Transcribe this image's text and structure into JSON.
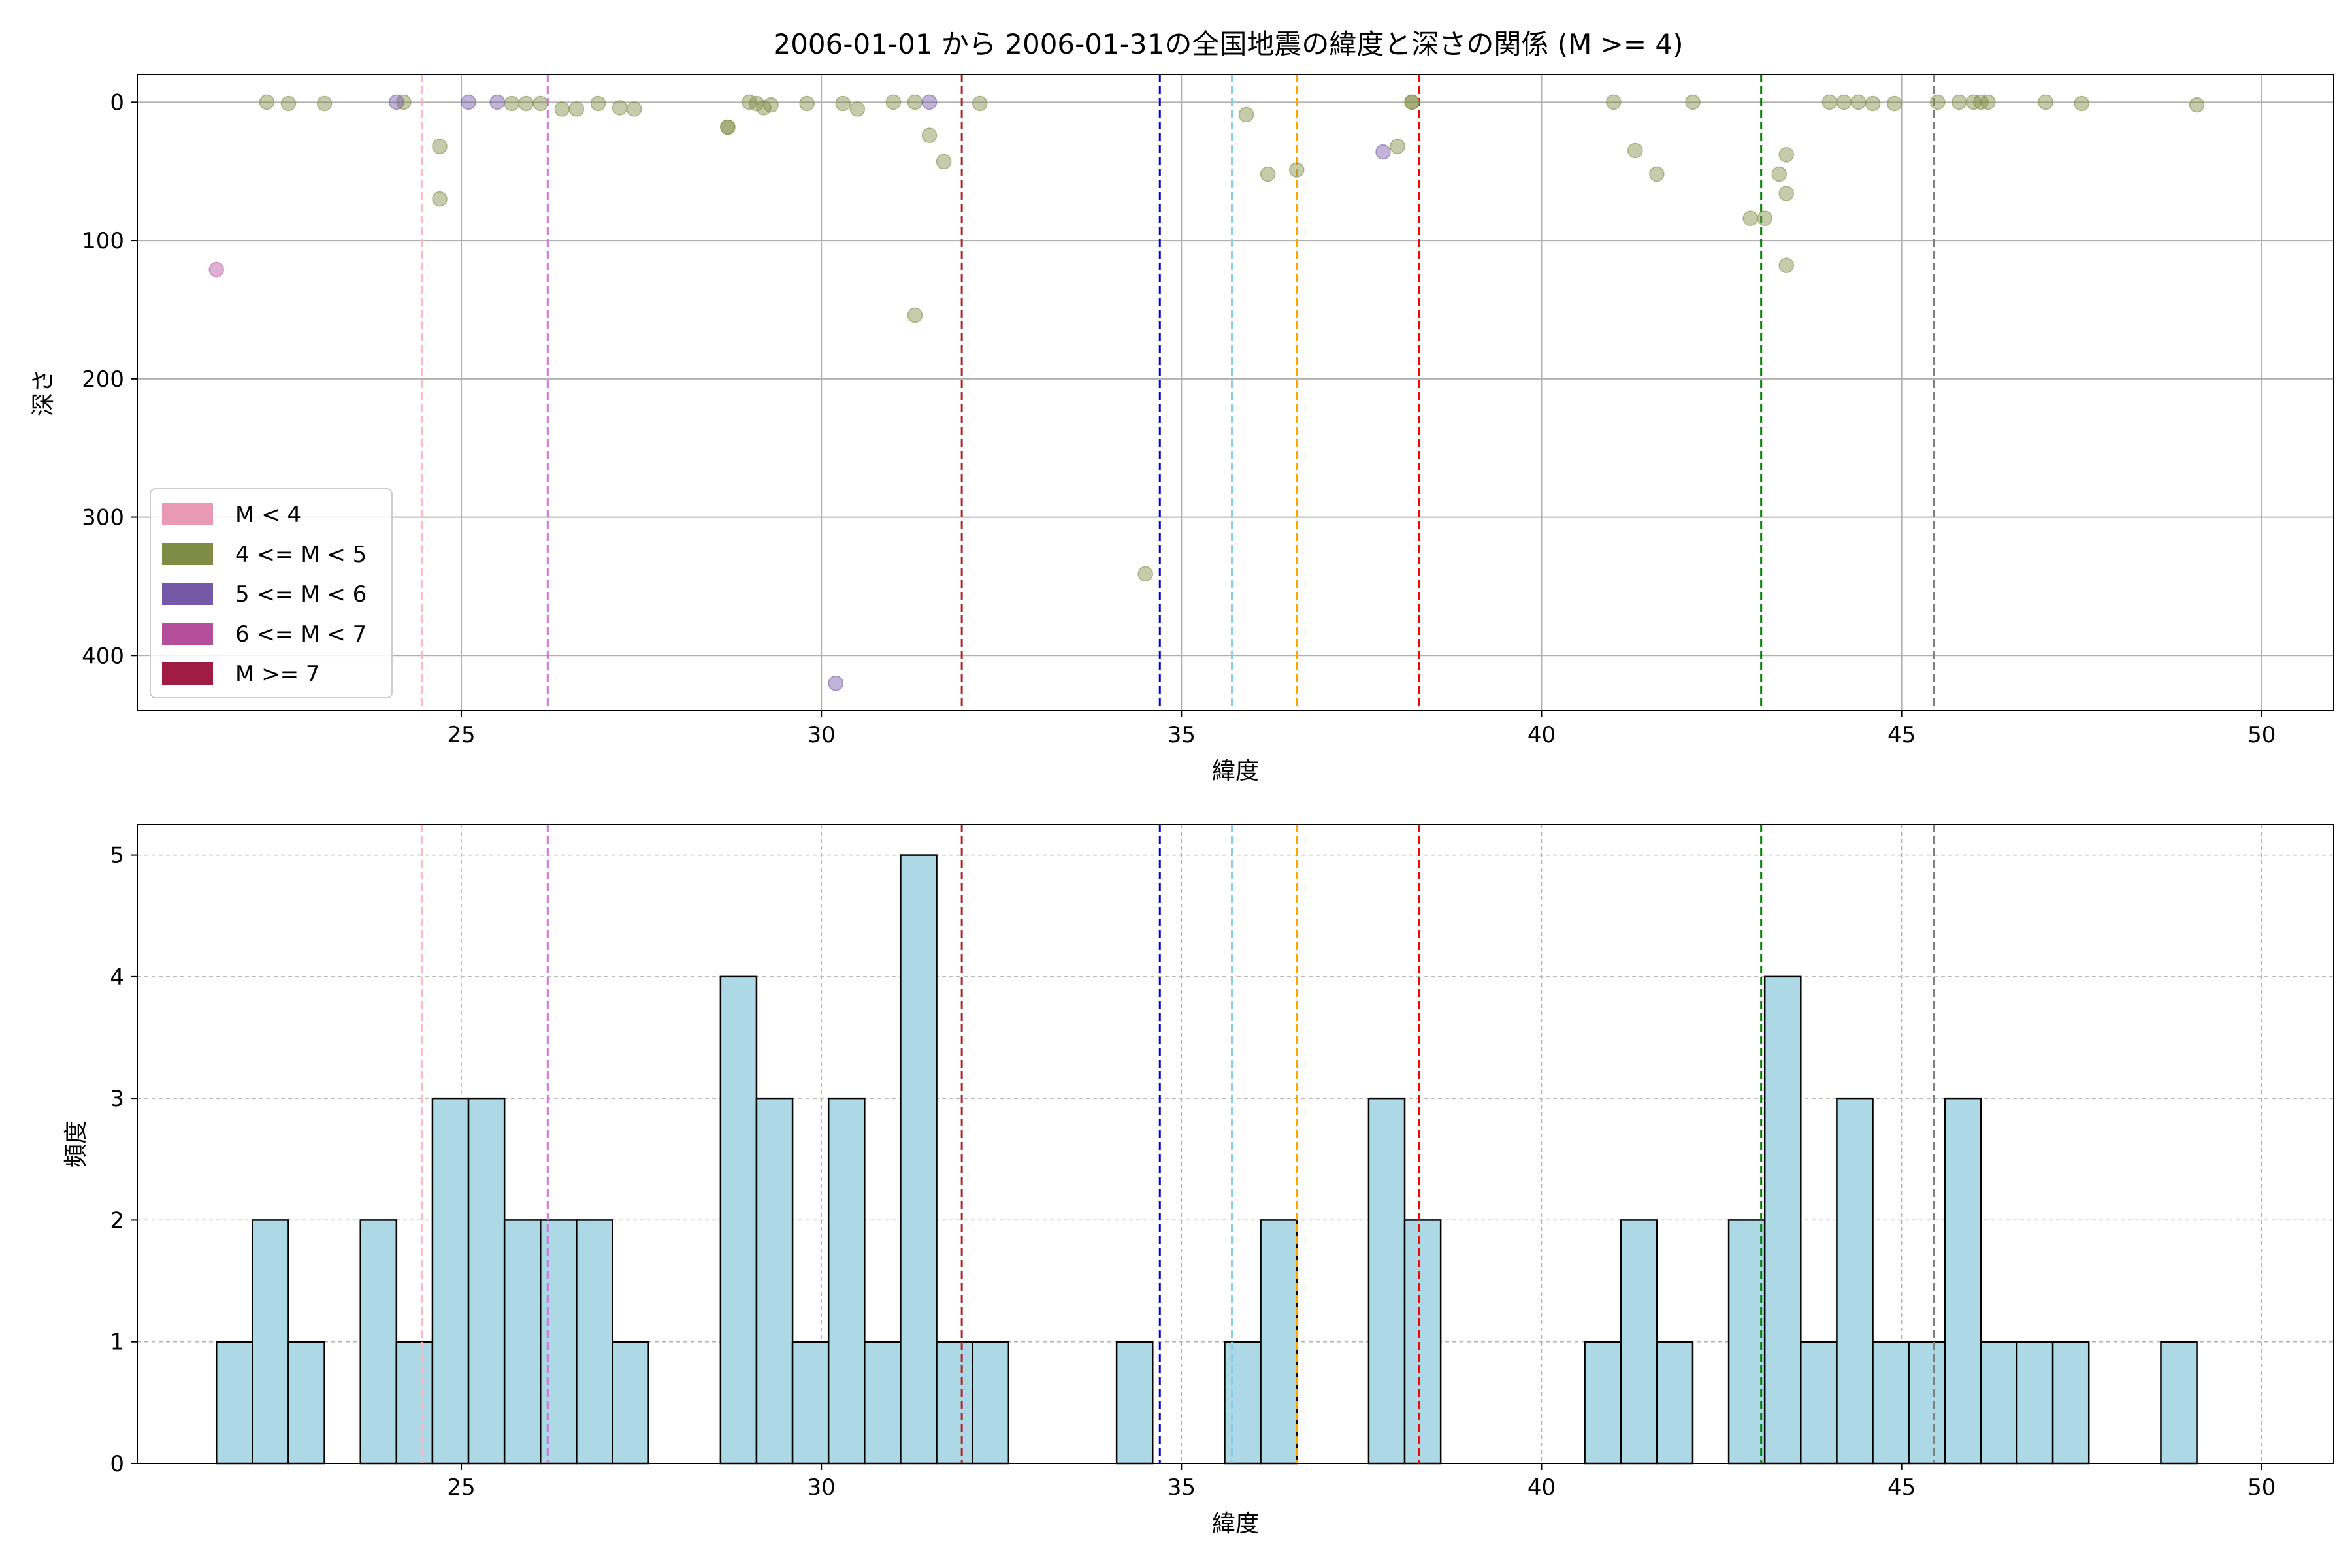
{
  "title": "2006-01-01 から 2006-01-31の全国地震の緯度と深さの関係 (M >= 4)",
  "colors": {
    "m_lt4": "#e89ab5",
    "m4_5": "#7f8c45",
    "m5_6": "#7559a6",
    "m6_7": "#b64f9b",
    "m_ge7": "#a01c44",
    "bar_fill": "#add8e6",
    "grid": "#b0b0b0"
  },
  "chart_data": [
    {
      "type": "scatter",
      "xlabel": "緯度",
      "ylabel": "深さ",
      "xlim": [
        20.5,
        51.0
      ],
      "ylim": [
        440,
        -20
      ],
      "y_inverted": true,
      "grid": true,
      "x_ticks": [
        "25",
        "30",
        "35",
        "40",
        "45",
        "50"
      ],
      "y_ticks": [
        "0",
        "100",
        "200",
        "300",
        "400"
      ],
      "legend": {
        "placement": "lower-left",
        "entries": [
          {
            "label": "M < 4",
            "color": "#e89ab5"
          },
          {
            "label": "4 <= M < 5",
            "color": "#7f8c45"
          },
          {
            "label": "5 <= M < 6",
            "color": "#7559a6"
          },
          {
            "label": "6 <= M < 7",
            "color": "#b64f9b"
          },
          {
            "label": "M >= 7",
            "color": "#a01c44"
          }
        ]
      },
      "vlines": [
        {
          "x": 24.45,
          "color": "#ffb6c1"
        },
        {
          "x": 26.2,
          "color": "#da70d6"
        },
        {
          "x": 31.95,
          "color": "#b22222"
        },
        {
          "x": 34.7,
          "color": "#0000cd"
        },
        {
          "x": 35.7,
          "color": "#87ceeb"
        },
        {
          "x": 36.6,
          "color": "#ffa500"
        },
        {
          "x": 38.3,
          "color": "#ff0000"
        },
        {
          "x": 43.05,
          "color": "#008000"
        },
        {
          "x": 45.45,
          "color": "#808080"
        }
      ],
      "series": [
        {
          "magnitude_class": "4 <= M < 5",
          "color": "#7f8c45",
          "points": [
            [
              22.3,
              0
            ],
            [
              22.6,
              1
            ],
            [
              23.1,
              1
            ],
            [
              24.2,
              0
            ],
            [
              24.7,
              32
            ],
            [
              24.7,
              70
            ],
            [
              25.7,
              1
            ],
            [
              25.9,
              1
            ],
            [
              26.1,
              1
            ],
            [
              26.4,
              5
            ],
            [
              26.6,
              5
            ],
            [
              26.9,
              1
            ],
            [
              27.2,
              4
            ],
            [
              27.4,
              5
            ],
            [
              28.7,
              18
            ],
            [
              28.7,
              18
            ],
            [
              29.0,
              0
            ],
            [
              29.1,
              1
            ],
            [
              29.2,
              4
            ],
            [
              29.3,
              2
            ],
            [
              29.8,
              1
            ],
            [
              30.3,
              1
            ],
            [
              30.5,
              5
            ],
            [
              31.0,
              0
            ],
            [
              31.3,
              0
            ],
            [
              31.3,
              154
            ],
            [
              31.5,
              24
            ],
            [
              31.7,
              43
            ],
            [
              32.2,
              1
            ],
            [
              34.5,
              341
            ],
            [
              35.9,
              9
            ],
            [
              36.2,
              52
            ],
            [
              36.6,
              49
            ],
            [
              38.0,
              32
            ],
            [
              38.2,
              0
            ],
            [
              38.2,
              0
            ],
            [
              41.0,
              0
            ],
            [
              41.3,
              35
            ],
            [
              41.6,
              52
            ],
            [
              42.1,
              0
            ],
            [
              42.9,
              84
            ],
            [
              43.1,
              84
            ],
            [
              43.3,
              52
            ],
            [
              43.4,
              38
            ],
            [
              43.4,
              66
            ],
            [
              43.4,
              118
            ],
            [
              44.0,
              0
            ],
            [
              44.2,
              0
            ],
            [
              44.4,
              0
            ],
            [
              44.6,
              1
            ],
            [
              44.9,
              1
            ],
            [
              45.5,
              0
            ],
            [
              45.8,
              0
            ],
            [
              46.0,
              0
            ],
            [
              46.1,
              0
            ],
            [
              46.2,
              0
            ],
            [
              47.0,
              0
            ],
            [
              47.5,
              1
            ],
            [
              49.1,
              2
            ]
          ]
        },
        {
          "magnitude_class": "5 <= M < 6",
          "color": "#7559a6",
          "points": [
            [
              24.1,
              0
            ],
            [
              25.1,
              0
            ],
            [
              25.5,
              0
            ],
            [
              31.5,
              0
            ],
            [
              30.2,
              420
            ],
            [
              37.8,
              36
            ]
          ]
        },
        {
          "magnitude_class": "6 <= M < 7",
          "color": "#b64f9b",
          "points": [
            [
              21.6,
              121
            ]
          ]
        }
      ]
    },
    {
      "type": "bar",
      "subtype": "histogram",
      "xlabel": "緯度",
      "ylabel": "頻度",
      "xlim": [
        20.5,
        51.0
      ],
      "ylim": [
        0,
        5.25
      ],
      "grid": true,
      "x_ticks": [
        "25",
        "30",
        "35",
        "40",
        "45",
        "50"
      ],
      "y_ticks": [
        "0",
        "1",
        "2",
        "3",
        "4",
        "5"
      ],
      "bin_width": 0.5,
      "vlines": [
        {
          "x": 24.45,
          "color": "#ffb6c1"
        },
        {
          "x": 26.2,
          "color": "#da70d6"
        },
        {
          "x": 31.95,
          "color": "#b22222"
        },
        {
          "x": 34.7,
          "color": "#0000cd"
        },
        {
          "x": 35.7,
          "color": "#87ceeb"
        },
        {
          "x": 36.6,
          "color": "#ffa500"
        },
        {
          "x": 38.3,
          "color": "#ff0000"
        },
        {
          "x": 43.05,
          "color": "#008000"
        },
        {
          "x": 45.45,
          "color": "#808080"
        }
      ],
      "bins": [
        [
          21.6,
          1
        ],
        [
          22.1,
          2
        ],
        [
          22.6,
          1
        ],
        [
          23.6,
          2
        ],
        [
          24.1,
          1
        ],
        [
          24.6,
          3
        ],
        [
          25.1,
          3
        ],
        [
          25.6,
          2
        ],
        [
          26.1,
          2
        ],
        [
          26.6,
          2
        ],
        [
          27.1,
          1
        ],
        [
          28.6,
          4
        ],
        [
          29.1,
          3
        ],
        [
          29.6,
          1
        ],
        [
          30.1,
          3
        ],
        [
          30.6,
          1
        ],
        [
          31.1,
          5
        ],
        [
          31.6,
          1
        ],
        [
          32.1,
          1
        ],
        [
          34.1,
          1
        ],
        [
          35.6,
          1
        ],
        [
          36.1,
          2
        ],
        [
          37.6,
          3
        ],
        [
          38.1,
          2
        ],
        [
          40.6,
          1
        ],
        [
          41.1,
          2
        ],
        [
          41.6,
          1
        ],
        [
          42.6,
          2
        ],
        [
          43.1,
          4
        ],
        [
          43.6,
          1
        ],
        [
          44.1,
          3
        ],
        [
          44.6,
          1
        ],
        [
          45.1,
          1
        ],
        [
          45.6,
          3
        ],
        [
          46.1,
          1
        ],
        [
          46.6,
          1
        ],
        [
          47.1,
          1
        ],
        [
          48.6,
          1
        ]
      ]
    }
  ]
}
